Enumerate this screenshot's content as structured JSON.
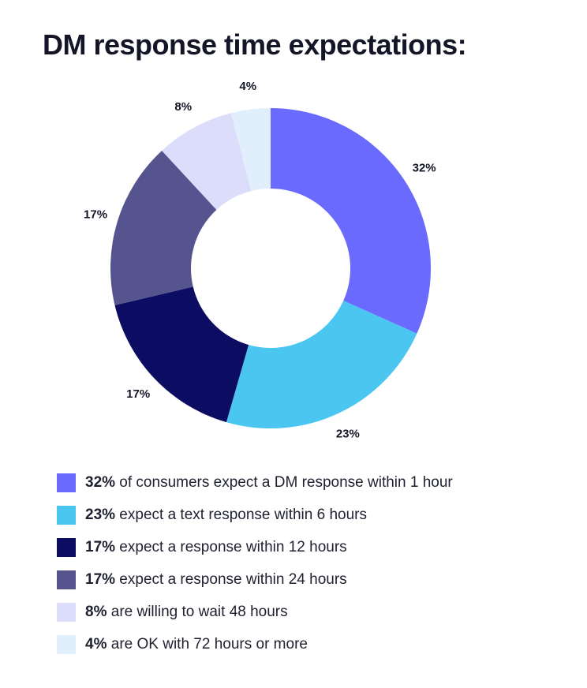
{
  "title": "DM response time expectations:",
  "chart_data": {
    "type": "donut",
    "title": "DM response time expectations:",
    "unit": "%",
    "slices": [
      {
        "value": 32,
        "label": "32%",
        "color": "#6a6afe",
        "legend_pct": "32%",
        "legend_text": " of consumers expect a DM response within 1 hour"
      },
      {
        "value": 23,
        "label": "23%",
        "color": "#4ac6f0",
        "legend_pct": "23%",
        "legend_text": " expect a text response within 6 hours"
      },
      {
        "value": 17,
        "label": "17%",
        "color": "#0c0c62",
        "legend_pct": "17%",
        "legend_text": " expect a response within 12 hours"
      },
      {
        "value": 17,
        "label": "17%",
        "color": "#55548f",
        "legend_pct": "17%",
        "legend_text": " expect a response within 24 hours"
      },
      {
        "value": 8,
        "label": "8%",
        "color": "#dcdcfb",
        "legend_pct": "8%",
        "legend_text": " are willing to wait 48 hours"
      },
      {
        "value": 4,
        "label": "4%",
        "color": "#e1effc",
        "legend_pct": "4%",
        "legend_text": " are OK with 72 hours or more"
      }
    ]
  }
}
